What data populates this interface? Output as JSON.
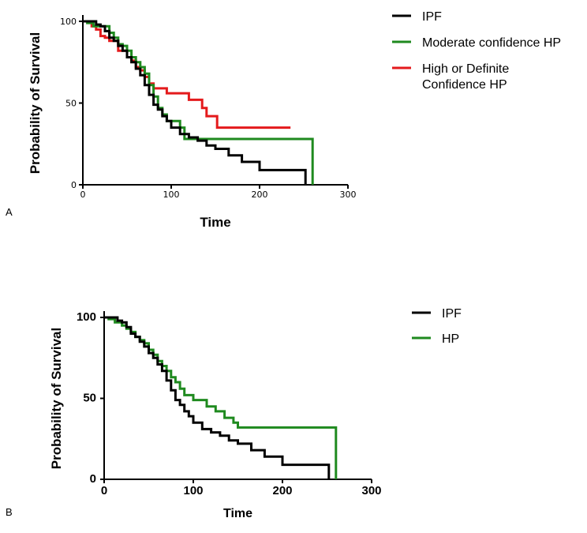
{
  "chart_data": [
    {
      "type": "line",
      "panel_label": "A",
      "title": "",
      "xlabel": "Time",
      "ylabel": "Probability of Survival",
      "xlim": [
        0,
        300
      ],
      "ylim": [
        0,
        100
      ],
      "xticks": [
        "0",
        "100",
        "200",
        "300"
      ],
      "yticks": [
        "0",
        "50",
        "100"
      ],
      "legend_position": "top-right",
      "series": [
        {
          "name": "IPF",
          "color": "#000000",
          "points": [
            [
              0,
              100
            ],
            [
              10,
              100
            ],
            [
              15,
              98
            ],
            [
              20,
              97
            ],
            [
              25,
              94
            ],
            [
              30,
              90
            ],
            [
              35,
              88
            ],
            [
              40,
              85
            ],
            [
              45,
              82
            ],
            [
              50,
              78
            ],
            [
              55,
              75
            ],
            [
              60,
              71
            ],
            [
              65,
              67
            ],
            [
              70,
              61
            ],
            [
              75,
              55
            ],
            [
              80,
              49
            ],
            [
              85,
              46
            ],
            [
              90,
              42
            ],
            [
              95,
              39
            ],
            [
              100,
              35
            ],
            [
              110,
              31
            ],
            [
              120,
              29
            ],
            [
              130,
              27
            ],
            [
              140,
              24
            ],
            [
              150,
              22
            ],
            [
              165,
              18
            ],
            [
              180,
              14
            ],
            [
              200,
              9
            ],
            [
              230,
              9
            ],
            [
              252,
              9
            ],
            [
              252,
              0
            ]
          ]
        },
        {
          "name": "Moderate confidence HP",
          "color": "#1f8a1f",
          "points": [
            [
              0,
              100
            ],
            [
              5,
              99
            ],
            [
              12,
              97
            ],
            [
              25,
              97
            ],
            [
              30,
              93
            ],
            [
              35,
              90
            ],
            [
              40,
              86
            ],
            [
              45,
              85
            ],
            [
              50,
              82
            ],
            [
              55,
              78
            ],
            [
              60,
              75
            ],
            [
              65,
              72
            ],
            [
              70,
              68
            ],
            [
              75,
              61
            ],
            [
              80,
              54
            ],
            [
              85,
              47
            ],
            [
              90,
              43
            ],
            [
              95,
              39
            ],
            [
              105,
              39
            ],
            [
              110,
              35
            ],
            [
              115,
              28
            ],
            [
              130,
              28
            ],
            [
              150,
              28
            ],
            [
              260,
              28
            ],
            [
              260,
              0
            ]
          ]
        },
        {
          "name": "High or Definite Confidence HP",
          "color": "#e41a1c",
          "points": [
            [
              0,
              100
            ],
            [
              10,
              97
            ],
            [
              15,
              95
            ],
            [
              20,
              91
            ],
            [
              25,
              90
            ],
            [
              30,
              88
            ],
            [
              40,
              82
            ],
            [
              50,
              78
            ],
            [
              55,
              76
            ],
            [
              60,
              72
            ],
            [
              65,
              70
            ],
            [
              70,
              66
            ],
            [
              75,
              62
            ],
            [
              80,
              59
            ],
            [
              90,
              59
            ],
            [
              95,
              56
            ],
            [
              120,
              56
            ],
            [
              120,
              52
            ],
            [
              130,
              52
            ],
            [
              135,
              47
            ],
            [
              140,
              42
            ],
            [
              150,
              42
            ],
            [
              152,
              35
            ],
            [
              180,
              35
            ],
            [
              235,
              35
            ]
          ]
        }
      ]
    },
    {
      "type": "line",
      "panel_label": "B",
      "title": "",
      "xlabel": "Time",
      "ylabel": "Probability of Survival",
      "xlim": [
        0,
        300
      ],
      "ylim": [
        0,
        100
      ],
      "xticks": [
        "0",
        "100",
        "200",
        "300"
      ],
      "yticks": [
        "0",
        "50",
        "100"
      ],
      "legend_position": "top-right",
      "series": [
        {
          "name": "IPF",
          "color": "#000000",
          "points": [
            [
              0,
              100
            ],
            [
              10,
              100
            ],
            [
              15,
              98
            ],
            [
              20,
              97
            ],
            [
              25,
              94
            ],
            [
              30,
              90
            ],
            [
              35,
              88
            ],
            [
              40,
              85
            ],
            [
              45,
              82
            ],
            [
              50,
              78
            ],
            [
              55,
              75
            ],
            [
              60,
              71
            ],
            [
              65,
              67
            ],
            [
              70,
              61
            ],
            [
              75,
              55
            ],
            [
              80,
              49
            ],
            [
              85,
              46
            ],
            [
              90,
              42
            ],
            [
              95,
              39
            ],
            [
              100,
              35
            ],
            [
              110,
              31
            ],
            [
              120,
              29
            ],
            [
              130,
              27
            ],
            [
              140,
              24
            ],
            [
              150,
              22
            ],
            [
              165,
              18
            ],
            [
              180,
              14
            ],
            [
              200,
              9
            ],
            [
              230,
              9
            ],
            [
              252,
              9
            ],
            [
              252,
              0
            ]
          ]
        },
        {
          "name": "HP",
          "color": "#1f8a1f",
          "points": [
            [
              0,
              100
            ],
            [
              5,
              99
            ],
            [
              12,
              97
            ],
            [
              20,
              95
            ],
            [
              25,
              93
            ],
            [
              30,
              91
            ],
            [
              35,
              88
            ],
            [
              40,
              86
            ],
            [
              45,
              84
            ],
            [
              50,
              80
            ],
            [
              55,
              77
            ],
            [
              60,
              73
            ],
            [
              65,
              70
            ],
            [
              70,
              67
            ],
            [
              75,
              63
            ],
            [
              80,
              60
            ],
            [
              85,
              56
            ],
            [
              90,
              52
            ],
            [
              100,
              49
            ],
            [
              110,
              49
            ],
            [
              115,
              45
            ],
            [
              125,
              42
            ],
            [
              135,
              38
            ],
            [
              145,
              35
            ],
            [
              150,
              32
            ],
            [
              200,
              32
            ],
            [
              260,
              32
            ],
            [
              260,
              0
            ]
          ]
        }
      ]
    }
  ]
}
